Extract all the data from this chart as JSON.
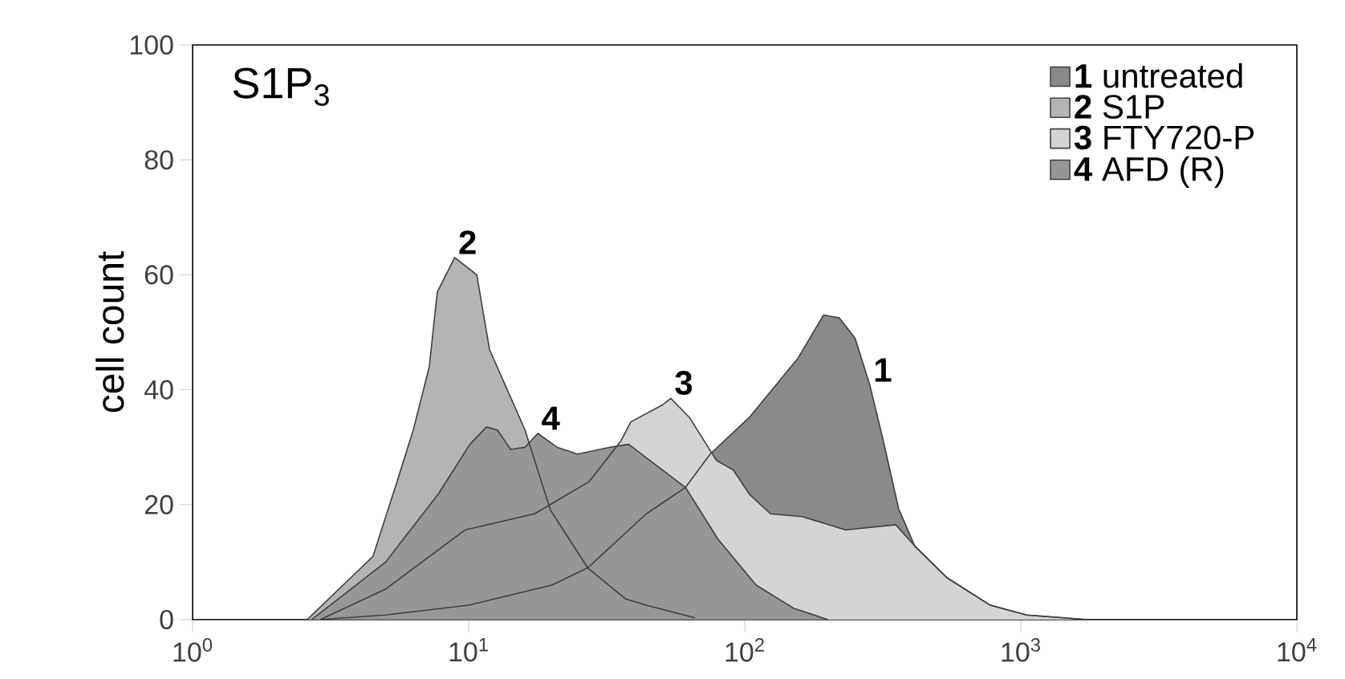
{
  "chart_data": {
    "type": "area",
    "title": "S1P$_{3}$",
    "ylabel": "cell count",
    "log": "x",
    "xlim": [
      1,
      10000
    ],
    "ylim": [
      0,
      100
    ],
    "xticks": [
      {
        "value": 1,
        "label": "10$^{0}$"
      },
      {
        "value": 10,
        "label": "10$^{1}$"
      },
      {
        "value": 100,
        "label": "10$^{2}$"
      },
      {
        "value": 1000,
        "label": "10$^{3}$"
      },
      {
        "value": 10000,
        "label": "10$^{4}$"
      }
    ],
    "yticks": [
      0,
      20,
      40,
      60,
      80,
      100
    ],
    "legend": "top right",
    "grid": false,
    "series": [
      {
        "name": "**1** untreated",
        "color": "#8a8a8a",
        "x": [
          2.9,
          5,
          10,
          20,
          27,
          44,
          61,
          75,
          104,
          156,
          193,
          220,
          251,
          284,
          316,
          361,
          413,
          540,
          776,
          1050,
          1740
        ],
        "values": [
          0,
          0.8,
          2.5,
          6,
          9,
          18.4,
          23,
          28.8,
          35.2,
          45.5,
          53,
          52.5,
          49,
          40.8,
          31.6,
          19.3,
          12.8,
          7.3,
          2.5,
          0.8,
          0
        ]
      },
      {
        "name": "**2** S1P",
        "color": "#b4b4b4",
        "x": [
          2.6,
          4.5,
          5.5,
          6.3,
          7.2,
          7.7,
          8.9,
          10.7,
          11.9,
          16,
          19.8,
          27,
          37,
          44,
          66
        ],
        "values": [
          0,
          11,
          24,
          33,
          44,
          57,
          63,
          60,
          47,
          33,
          19,
          9,
          3.6,
          2.5,
          0.3
        ]
      },
      {
        "name": "**3** FTY720-P",
        "color": "#d4d4d4",
        "x": [
          2.9,
          5,
          9.7,
          17.3,
          27.3,
          35.5,
          38.7,
          50.5,
          54,
          63,
          79,
          91,
          104,
          124,
          162,
          232,
          352,
          413,
          540,
          776,
          1050,
          1740
        ],
        "values": [
          0,
          5.3,
          15.6,
          18.4,
          24,
          31,
          34.4,
          37.4,
          38.5,
          35.2,
          27.7,
          26,
          21.8,
          18.4,
          17.9,
          15.6,
          16.5,
          12.8,
          7.3,
          2.5,
          0.8,
          0
        ]
      },
      {
        "name": "**4** AFD (R)",
        "color": "#969696",
        "x": [
          2.7,
          5,
          7.8,
          10.1,
          11.6,
          12.7,
          14.2,
          16,
          17.8,
          20.9,
          24.8,
          32.5,
          38,
          61,
          80,
          110,
          150,
          200
        ],
        "values": [
          0,
          10,
          22,
          30.5,
          33.5,
          33,
          29.6,
          30,
          32.4,
          30,
          28.8,
          30,
          30.5,
          23,
          14,
          6,
          2,
          0
        ]
      }
    ],
    "annotations": [
      {
        "text": "1",
        "x": 284,
        "y": 40.8
      },
      {
        "text": "2",
        "x": 8.9,
        "y": 63
      },
      {
        "text": "3",
        "x": 54,
        "y": 38.5
      },
      {
        "text": "4",
        "x": 17.8,
        "y": 32.4
      }
    ]
  }
}
